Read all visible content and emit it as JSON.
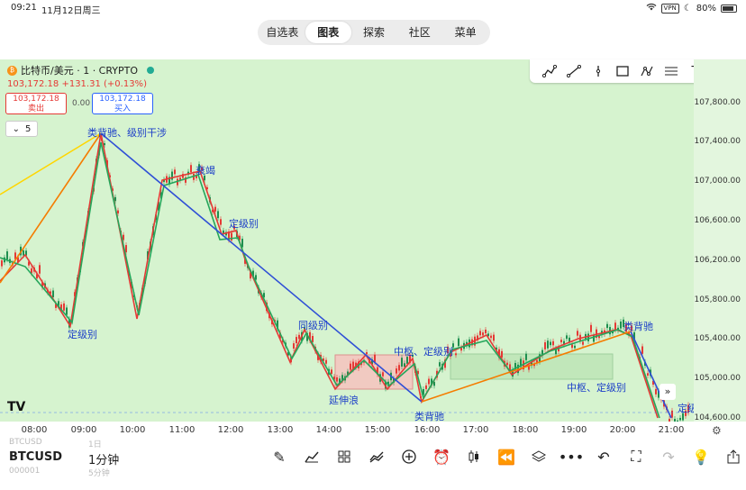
{
  "status": {
    "time": "09:21",
    "date": "11月12日周三",
    "vpn": "VPN",
    "battery": "80%"
  },
  "nav": {
    "tabs": [
      "自选表",
      "图表",
      "探索",
      "社区",
      "菜单"
    ],
    "active_index": 1
  },
  "symbol": {
    "name": "比特币/美元 · 1 · CRYPTO",
    "coin_glyph": "₿",
    "last": "103,172.18",
    "change": "+131.31",
    "change_pct": "(+0.13%)"
  },
  "trade": {
    "sell_price": "103,172.18",
    "sell_label": "卖出",
    "spread": "0.00",
    "buy_price": "103,172.18",
    "buy_label": "买入"
  },
  "indicator_count": "5",
  "price_axis": {
    "ticks": [
      "107,800.00",
      "107,400.00",
      "107,000.00",
      "106,600.00",
      "106,200.00",
      "105,800.00",
      "105,400.00",
      "105,000.00",
      "104,600.00"
    ]
  },
  "time_axis": {
    "ticks": [
      "08:00",
      "09:00",
      "10:00",
      "11:00",
      "12:00",
      "13:00",
      "14:00",
      "15:00",
      "16:00",
      "17:00",
      "18:00",
      "19:00",
      "20:00",
      "21:00"
    ]
  },
  "annotations": [
    "类背驰、级别干涉",
    "衰竭",
    "定级别",
    "定级别",
    "同级别",
    "中枢、定级别",
    "延伸浪",
    "类背驰",
    "中枢、定级别",
    "类背驰",
    "定级"
  ],
  "bottom": {
    "symbol": "BTCUSD",
    "timeframe": "1分钟",
    "ghost_symbol_top": "BTCUSD",
    "ghost_symbol_bottom": "000001",
    "ghost_tf_top": "1日",
    "ghost_tf_bottom": "5分钟"
  },
  "logo_text": "TV",
  "colors": {
    "chart_bg": "#d6f3cf",
    "up": "#e53935",
    "down": "#26a65b",
    "trend_blue": "#2f4fd6",
    "trend_orange": "#f57c00",
    "trend_yellow": "#ffd600",
    "zone_red": "#f4c6c0",
    "zone_green": "#bfe6b8"
  }
}
